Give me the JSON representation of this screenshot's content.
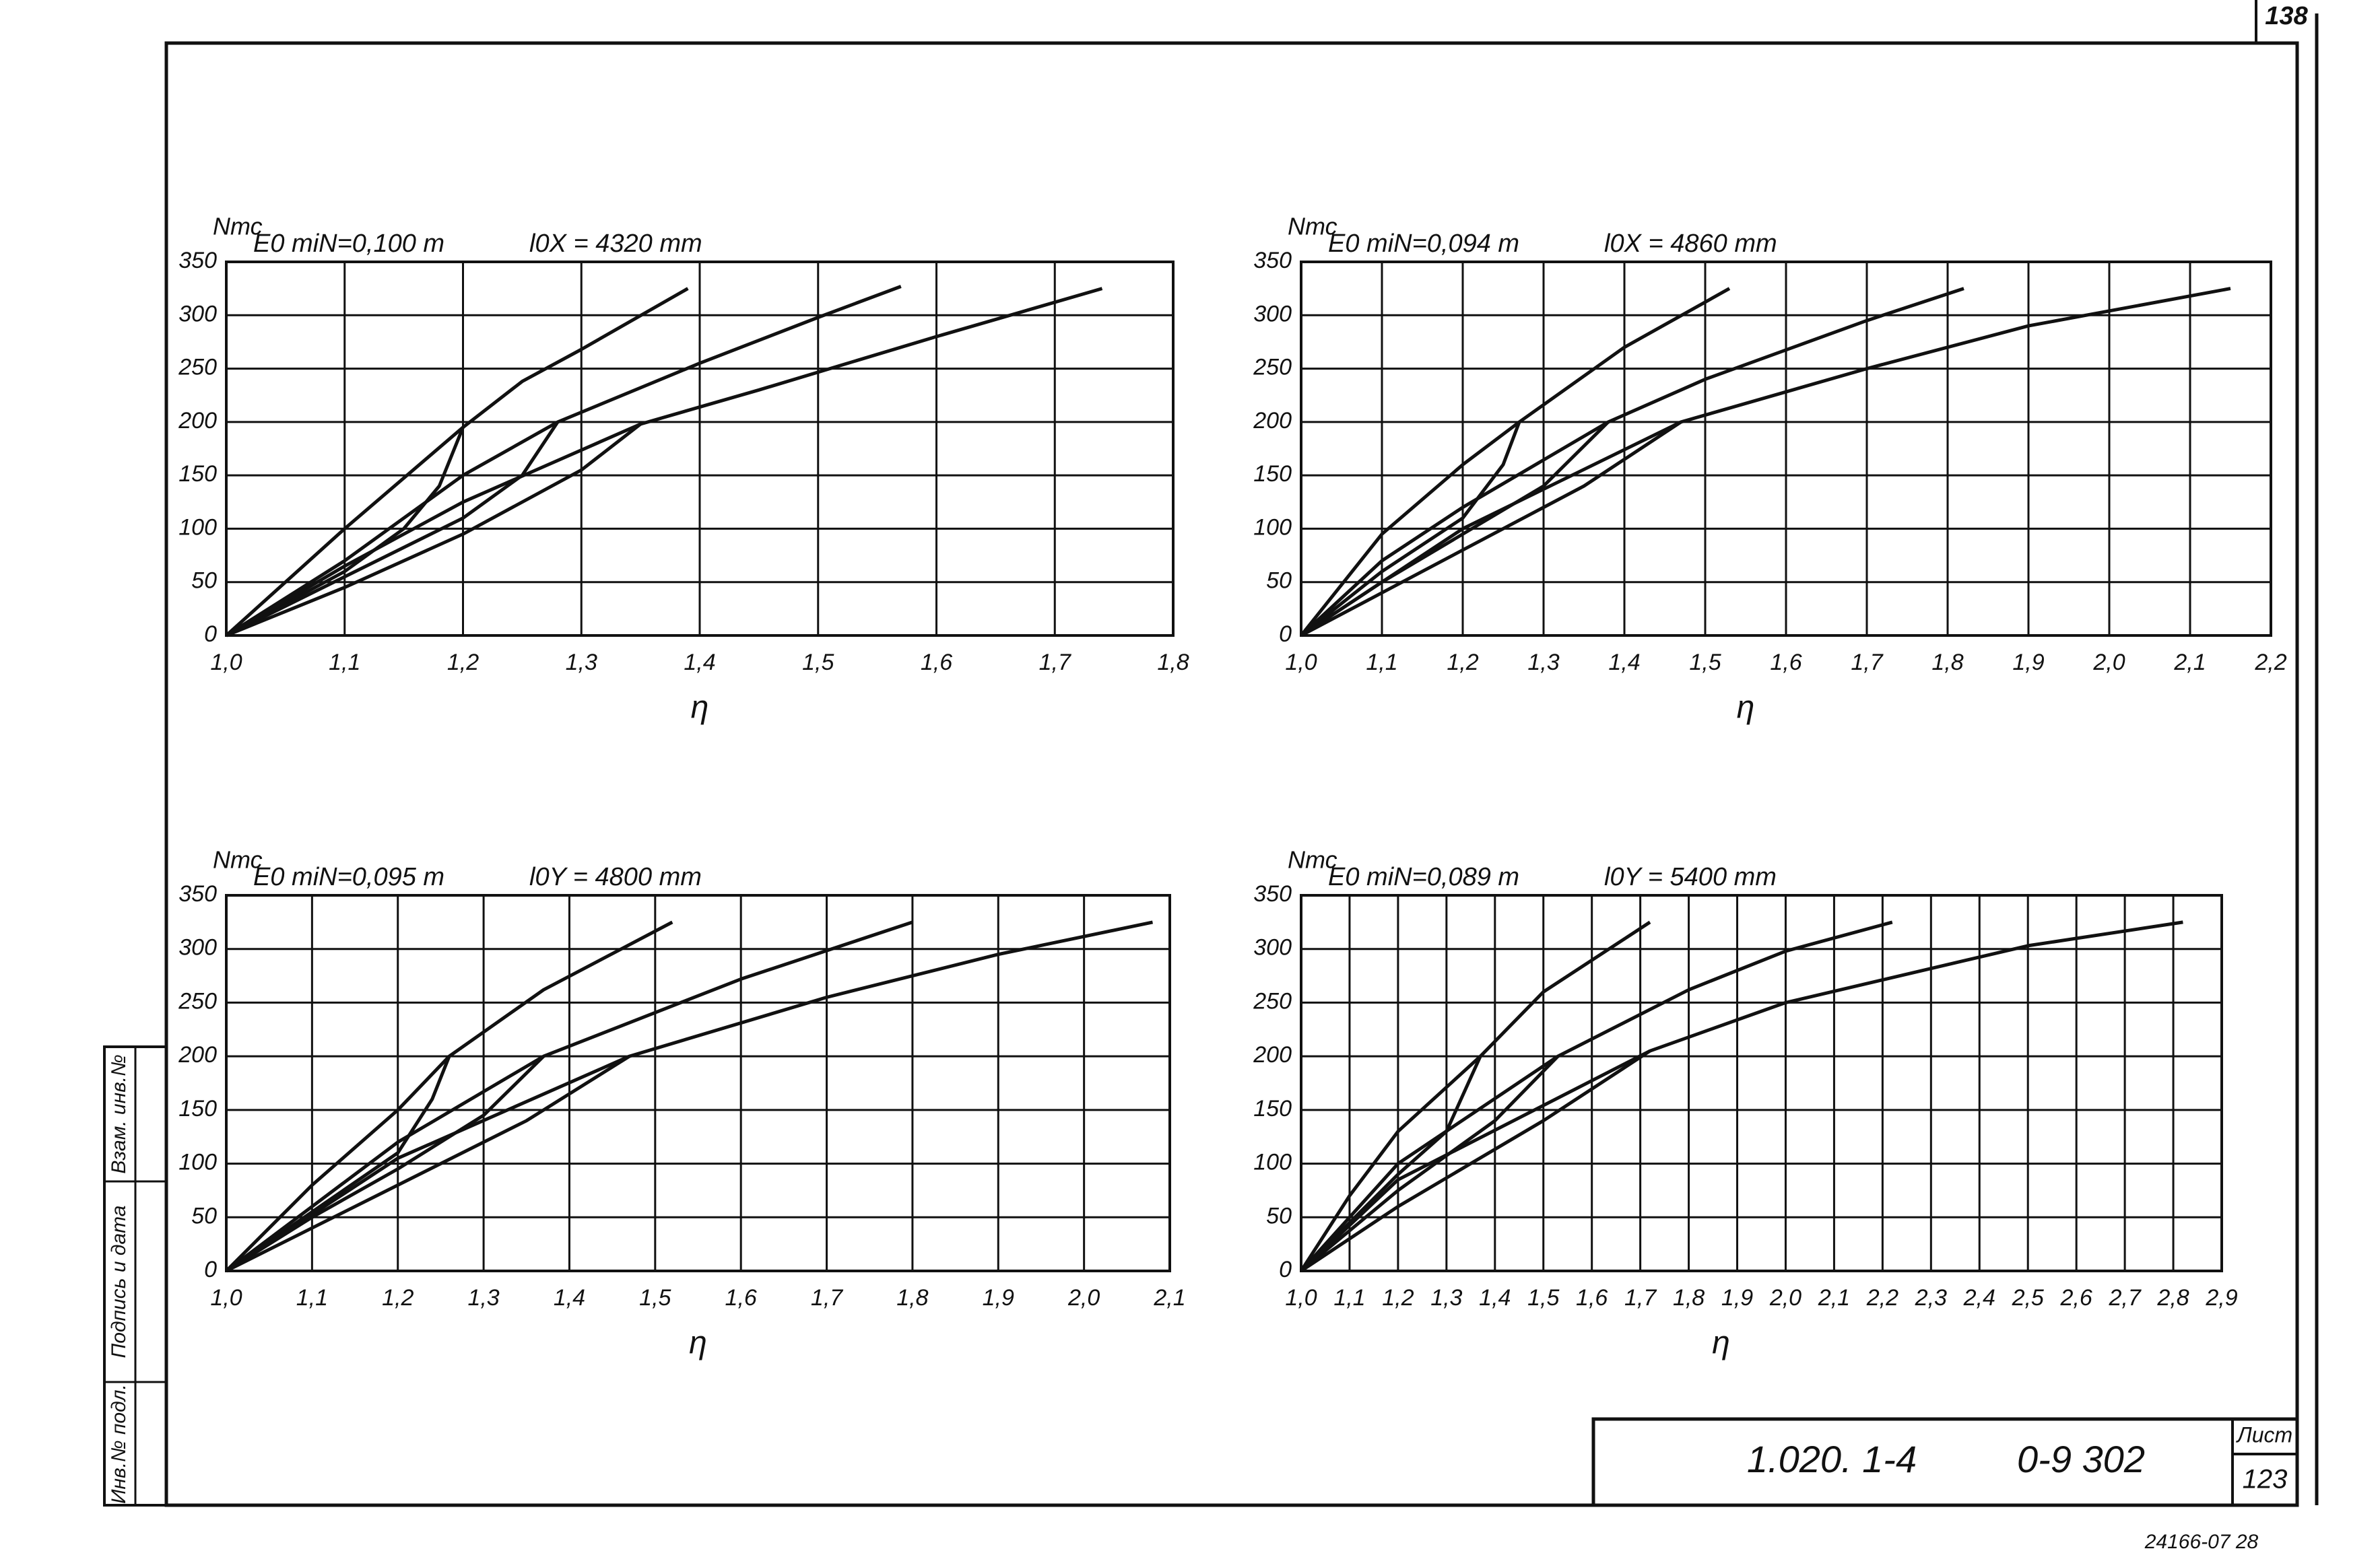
{
  "chart_data": [
    {
      "type": "line",
      "y_label": "Nтс",
      "x_label": "η",
      "annotations": [
        "E0 miN=0,100 m",
        "l0X = 4320 mm"
      ],
      "xlim": [
        1.0,
        1.8
      ],
      "ylim": [
        0,
        350
      ],
      "grid": true,
      "xticks": [
        {
          "value": 1.0,
          "label": "1,0"
        },
        {
          "value": 1.1,
          "label": "1,1"
        },
        {
          "value": 1.2,
          "label": "1,2"
        },
        {
          "value": 1.3,
          "label": "1,3"
        },
        {
          "value": 1.4,
          "label": "1,4"
        },
        {
          "value": 1.5,
          "label": "1,5"
        },
        {
          "value": 1.6,
          "label": "1,6"
        },
        {
          "value": 1.7,
          "label": "1,7"
        },
        {
          "value": 1.8,
          "label": "1,8"
        }
      ],
      "yticks": [
        0,
        50,
        100,
        150,
        200,
        250,
        300,
        350
      ],
      "series": [
        {
          "color": "#111",
          "x": [
            1.0,
            1.1,
            1.2,
            1.25,
            1.3,
            1.39
          ],
          "values": [
            0,
            100,
            195,
            238,
            268,
            325
          ]
        },
        {
          "color": "#111",
          "x": [
            1.0,
            1.1,
            1.15,
            1.18,
            1.2
          ],
          "values": [
            0,
            60,
            100,
            140,
            195
          ]
        },
        {
          "color": "#111",
          "x": [
            1.0,
            1.1,
            1.2,
            1.28,
            1.4,
            1.5,
            1.57
          ],
          "values": [
            0,
            70,
            150,
            200,
            255,
            298,
            327
          ]
        },
        {
          "color": "#111",
          "x": [
            1.0,
            1.1,
            1.2,
            1.25,
            1.28
          ],
          "values": [
            0,
            55,
            110,
            150,
            200
          ]
        },
        {
          "color": "#111",
          "x": [
            1.0,
            1.1,
            1.2,
            1.35,
            1.45,
            1.6,
            1.74
          ],
          "values": [
            0,
            65,
            125,
            198,
            230,
            280,
            325
          ]
        },
        {
          "color": "#111",
          "x": [
            1.0,
            1.1,
            1.2,
            1.3,
            1.35
          ],
          "values": [
            0,
            45,
            95,
            155,
            198
          ]
        }
      ]
    },
    {
      "type": "line",
      "y_label": "Nтс",
      "x_label": "η",
      "annotations": [
        "E0 miN=0,094 m",
        "l0X = 4860 mm"
      ],
      "xlim": [
        1.0,
        2.2
      ],
      "ylim": [
        0,
        350
      ],
      "grid": true,
      "xticks": [
        {
          "value": 1.0,
          "label": "1,0"
        },
        {
          "value": 1.1,
          "label": "1,1"
        },
        {
          "value": 1.2,
          "label": "1,2"
        },
        {
          "value": 1.3,
          "label": "1,3"
        },
        {
          "value": 1.4,
          "label": "1,4"
        },
        {
          "value": 1.5,
          "label": "1,5"
        },
        {
          "value": 1.6,
          "label": "1,6"
        },
        {
          "value": 1.7,
          "label": "1,7"
        },
        {
          "value": 1.8,
          "label": "1,8"
        },
        {
          "value": 1.9,
          "label": "1,9"
        },
        {
          "value": 2.0,
          "label": "2,0"
        },
        {
          "value": 2.1,
          "label": "2,1"
        },
        {
          "value": 2.2,
          "label": "2,2"
        }
      ],
      "yticks": [
        0,
        50,
        100,
        150,
        200,
        250,
        300,
        350
      ],
      "series": [
        {
          "color": "#111",
          "x": [
            1.0,
            1.1,
            1.2,
            1.27,
            1.4,
            1.53
          ],
          "values": [
            0,
            95,
            160,
            200,
            270,
            325
          ]
        },
        {
          "color": "#111",
          "x": [
            1.0,
            1.1,
            1.2,
            1.25,
            1.27
          ],
          "values": [
            0,
            60,
            110,
            160,
            200
          ]
        },
        {
          "color": "#111",
          "x": [
            1.0,
            1.1,
            1.2,
            1.38,
            1.5,
            1.7,
            1.82
          ],
          "values": [
            0,
            70,
            120,
            200,
            240,
            295,
            325
          ]
        },
        {
          "color": "#111",
          "x": [
            1.0,
            1.1,
            1.2,
            1.3,
            1.38
          ],
          "values": [
            0,
            50,
            95,
            140,
            200
          ]
        },
        {
          "color": "#111",
          "x": [
            1.0,
            1.2,
            1.47,
            1.7,
            1.9,
            2.15
          ],
          "values": [
            0,
            100,
            200,
            250,
            290,
            325
          ]
        },
        {
          "color": "#111",
          "x": [
            1.0,
            1.1,
            1.2,
            1.35,
            1.47
          ],
          "values": [
            0,
            40,
            80,
            140,
            200
          ]
        }
      ]
    },
    {
      "type": "line",
      "y_label": "Nтс",
      "x_label": "η",
      "annotations": [
        "E0 miN=0,095 m",
        "l0Y = 4800 mm"
      ],
      "xlim": [
        1.0,
        2.1
      ],
      "ylim": [
        0,
        350
      ],
      "grid": true,
      "xticks": [
        {
          "value": 1.0,
          "label": "1,0"
        },
        {
          "value": 1.1,
          "label": "1,1"
        },
        {
          "value": 1.2,
          "label": "1,2"
        },
        {
          "value": 1.3,
          "label": "1,3"
        },
        {
          "value": 1.4,
          "label": "1,4"
        },
        {
          "value": 1.5,
          "label": "1,5"
        },
        {
          "value": 1.6,
          "label": "1,6"
        },
        {
          "value": 1.7,
          "label": "1,7"
        },
        {
          "value": 1.8,
          "label": "1,8"
        },
        {
          "value": 1.9,
          "label": "1,9"
        },
        {
          "value": 2.0,
          "label": "2,0"
        },
        {
          "value": 2.1,
          "label": "2,1"
        }
      ],
      "yticks": [
        0,
        50,
        100,
        150,
        200,
        250,
        300,
        350
      ],
      "series": [
        {
          "color": "#111",
          "x": [
            1.0,
            1.1,
            1.2,
            1.26,
            1.37,
            1.52
          ],
          "values": [
            0,
            80,
            150,
            200,
            262,
            325
          ]
        },
        {
          "color": "#111",
          "x": [
            1.0,
            1.1,
            1.2,
            1.24,
            1.26
          ],
          "values": [
            0,
            55,
            110,
            160,
            200
          ]
        },
        {
          "color": "#111",
          "x": [
            1.0,
            1.2,
            1.37,
            1.6,
            1.8
          ],
          "values": [
            0,
            120,
            200,
            272,
            325
          ]
        },
        {
          "color": "#111",
          "x": [
            1.0,
            1.1,
            1.2,
            1.3,
            1.37
          ],
          "values": [
            0,
            50,
            95,
            145,
            200
          ]
        },
        {
          "color": "#111",
          "x": [
            1.0,
            1.2,
            1.47,
            1.7,
            1.9,
            2.08
          ],
          "values": [
            0,
            105,
            200,
            255,
            295,
            325
          ]
        },
        {
          "color": "#111",
          "x": [
            1.0,
            1.1,
            1.2,
            1.35,
            1.47
          ],
          "values": [
            0,
            40,
            80,
            140,
            200
          ]
        }
      ]
    },
    {
      "type": "line",
      "y_label": "Nтс",
      "x_label": "η",
      "annotations": [
        "E0 miN=0,089 m",
        "l0Y = 5400 mm"
      ],
      "xlim": [
        1.0,
        2.9
      ],
      "ylim": [
        0,
        350
      ],
      "grid": true,
      "xticks": [
        {
          "value": 1.0,
          "label": "1,0"
        },
        {
          "value": 1.1,
          "label": "1,1"
        },
        {
          "value": 1.2,
          "label": "1,2"
        },
        {
          "value": 1.3,
          "label": "1,3"
        },
        {
          "value": 1.4,
          "label": "1,4"
        },
        {
          "value": 1.5,
          "label": "1,5"
        },
        {
          "value": 1.6,
          "label": "1,6"
        },
        {
          "value": 1.7,
          "label": "1,7"
        },
        {
          "value": 1.8,
          "label": "1,8"
        },
        {
          "value": 1.9,
          "label": "1,9"
        },
        {
          "value": 2.0,
          "label": "2,0"
        },
        {
          "value": 2.1,
          "label": "2,1"
        },
        {
          "value": 2.2,
          "label": "2,2"
        },
        {
          "value": 2.3,
          "label": "2,3"
        },
        {
          "value": 2.4,
          "label": "2,4"
        },
        {
          "value": 2.5,
          "label": "2,5"
        },
        {
          "value": 2.6,
          "label": "2,6"
        },
        {
          "value": 2.7,
          "label": "2,7"
        },
        {
          "value": 2.8,
          "label": "2,8"
        },
        {
          "value": 2.9,
          "label": "2,9"
        }
      ],
      "yticks": [
        0,
        50,
        100,
        150,
        200,
        250,
        300,
        350
      ],
      "series": [
        {
          "color": "#111",
          "x": [
            1.0,
            1.1,
            1.2,
            1.37,
            1.5,
            1.72
          ],
          "values": [
            0,
            70,
            130,
            200,
            260,
            325
          ]
        },
        {
          "color": "#111",
          "x": [
            1.0,
            1.1,
            1.2,
            1.3,
            1.37
          ],
          "values": [
            0,
            45,
            90,
            130,
            200
          ]
        },
        {
          "color": "#111",
          "x": [
            1.0,
            1.2,
            1.53,
            1.8,
            2.0,
            2.22
          ],
          "values": [
            0,
            100,
            200,
            262,
            298,
            325
          ]
        },
        {
          "color": "#111",
          "x": [
            1.0,
            1.2,
            1.4,
            1.53
          ],
          "values": [
            0,
            75,
            140,
            200
          ]
        },
        {
          "color": "#111",
          "x": [
            1.0,
            1.2,
            1.72,
            2.0,
            2.5,
            2.82
          ],
          "values": [
            0,
            85,
            205,
            250,
            303,
            325
          ]
        },
        {
          "color": "#111",
          "x": [
            1.0,
            1.2,
            1.5,
            1.72
          ],
          "values": [
            0,
            60,
            140,
            205
          ]
        }
      ]
    }
  ],
  "frame": {
    "sheet_number_top": "138",
    "code_1": "1.020. 1-4",
    "code_2": "0-9 302",
    "sheet_label": "Лист",
    "sheet_number": "123",
    "side_stamp": [
      "Инв.№ подл.",
      "Подпись и дата",
      "Взам. инв.№"
    ],
    "archive_number": "24166-07 28"
  }
}
